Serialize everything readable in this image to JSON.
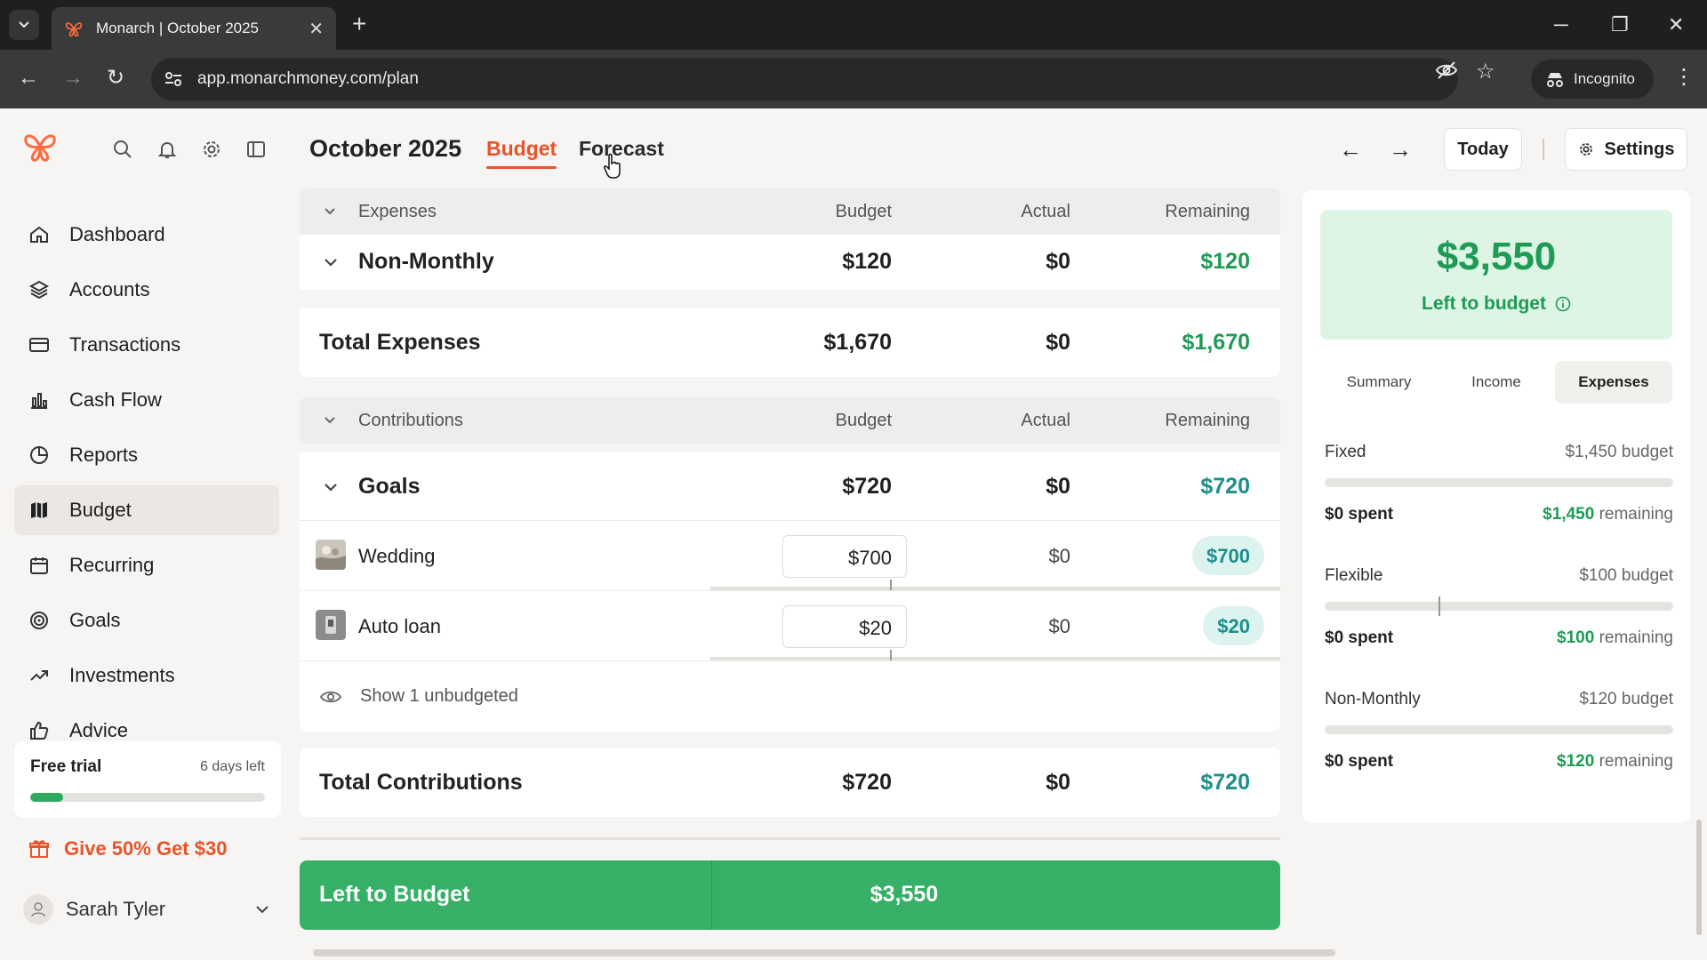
{
  "browser": {
    "tab_title": "Monarch | October 2025",
    "url": "app.monarchmoney.com/plan",
    "incognito_label": "Incognito"
  },
  "colors": {
    "accent": "#e8542a",
    "green": "#1e9b55",
    "teal": "#1b8f8a",
    "ltb_bar": "#35b066"
  },
  "sidebar": {
    "nav": [
      {
        "label": "Dashboard",
        "icon": "home-icon"
      },
      {
        "label": "Accounts",
        "icon": "layers-icon"
      },
      {
        "label": "Transactions",
        "icon": "card-icon"
      },
      {
        "label": "Cash Flow",
        "icon": "bar-chart-icon"
      },
      {
        "label": "Reports",
        "icon": "pie-icon"
      },
      {
        "label": "Budget",
        "icon": "map-icon",
        "active": true
      },
      {
        "label": "Recurring",
        "icon": "calendar-icon"
      },
      {
        "label": "Goals",
        "icon": "target-icon"
      },
      {
        "label": "Investments",
        "icon": "trend-icon"
      },
      {
        "label": "Advice",
        "icon": "thumbs-up-icon"
      }
    ],
    "trial": {
      "title": "Free trial",
      "days_left": "6 days left",
      "progress": 0.14
    },
    "referral": "Give 50% Get $30",
    "user": "Sarah Tyler"
  },
  "header": {
    "month": "October 2025",
    "tabs": [
      "Budget",
      "Forecast"
    ],
    "today": "Today",
    "settings": "Settings"
  },
  "columns": {
    "budget": "Budget",
    "actual": "Actual",
    "remaining": "Remaining"
  },
  "expenses": {
    "header": "Expenses",
    "non_monthly": {
      "name": "Non-Monthly",
      "budget": "$120",
      "actual": "$0",
      "remaining": "$120"
    },
    "total": {
      "name": "Total Expenses",
      "budget": "$1,670",
      "actual": "$0",
      "remaining": "$1,670"
    }
  },
  "contributions": {
    "header": "Contributions",
    "goals": {
      "name": "Goals",
      "budget": "$720",
      "actual": "$0",
      "remaining": "$720"
    },
    "items": [
      {
        "name": "Wedding",
        "budget": "$700",
        "actual": "$0",
        "remaining": "$700"
      },
      {
        "name": "Auto loan",
        "budget": "$20",
        "actual": "$0",
        "remaining": "$20"
      }
    ],
    "show_unbudgeted": "Show 1 unbudgeted",
    "total": {
      "name": "Total Contributions",
      "budget": "$720",
      "actual": "$0",
      "remaining": "$720"
    }
  },
  "left_to_budget_bar": {
    "label": "Left to Budget",
    "value": "$3,550"
  },
  "right_panel": {
    "amount": "$3,550",
    "label": "Left to budget",
    "segments": [
      "Summary",
      "Income",
      "Expenses"
    ],
    "active_segment": "Expenses",
    "groups": [
      {
        "name": "Fixed",
        "budget": "$1,450 budget",
        "spent": "$0 spent",
        "remaining_value": "$1,450",
        "remaining_word": "remaining"
      },
      {
        "name": "Flexible",
        "budget": "$100 budget",
        "spent": "$0 spent",
        "remaining_value": "$100",
        "remaining_word": "remaining"
      },
      {
        "name": "Non-Monthly",
        "budget": "$120 budget",
        "spent": "$0 spent",
        "remaining_value": "$120",
        "remaining_word": "remaining"
      }
    ]
  }
}
